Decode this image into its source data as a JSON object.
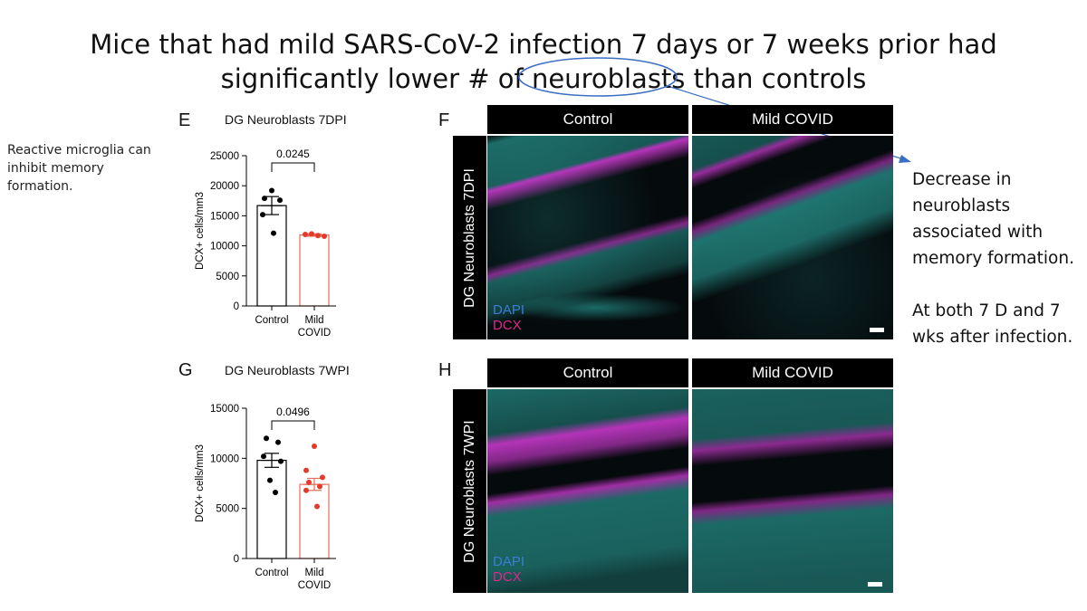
{
  "slide": {
    "title_line1": "Mice that had mild SARS-CoV-2 infection 7 days or 7 weeks prior had",
    "title_line2": "significantly lower # of neuroblasts than controls",
    "left_note": "Reactive microglia can inhibit memory formation.",
    "right_note_p1": "Decrease in neuroblasts associated with memory formation.",
    "right_note_p2": "At both 7 D and 7 wks after infection."
  },
  "panels": {
    "E": "E",
    "F": "F",
    "G": "G",
    "H": "H"
  },
  "micrographs": {
    "col_control": "Control",
    "col_covid": "Mild COVID",
    "row_7dpi": "DG Neuroblasts 7DPI",
    "row_7wpi": "DG Neuroblasts 7WPI",
    "stain_dapi": "DAPI",
    "stain_dcx": "DCX"
  },
  "colors": {
    "control": "#000000",
    "covid_bar": "#e0705a",
    "covid_dot": "#e53a2b",
    "annotation": "#3b6fc4",
    "dapi": "#3a7fd6",
    "dcx": "#e0268c",
    "cyan": "#2fb7ae",
    "magenta": "#d23bd6"
  },
  "chart_data": [
    {
      "type": "bar",
      "title": "DG Neuroblasts 7DPI",
      "ylabel": "DCX+ cells/mm3",
      "xlabel": "",
      "ylim": [
        0,
        25000
      ],
      "yticks": [
        0,
        5000,
        10000,
        15000,
        20000,
        25000
      ],
      "categories": [
        "Control",
        "Mild COVID"
      ],
      "category_lines": [
        [
          "Control"
        ],
        [
          "Mild",
          "COVID"
        ]
      ],
      "values": [
        16700,
        11800
      ],
      "sem": [
        1500,
        200
      ],
      "points": [
        [
          19200,
          17900,
          17600,
          15200,
          12100
        ],
        [
          11900,
          12000,
          11700,
          11600
        ]
      ],
      "p_value": "0.0245"
    },
    {
      "type": "bar",
      "title": "DG Neuroblasts 7WPI",
      "ylabel": "DCX+ cells/mm3",
      "xlabel": "",
      "ylim": [
        0,
        15000
      ],
      "yticks": [
        0,
        5000,
        10000,
        15000
      ],
      "categories": [
        "Control",
        "Mild COVID"
      ],
      "category_lines": [
        [
          "Control"
        ],
        [
          "Mild",
          "COVID"
        ]
      ],
      "values": [
        9800,
        7400
      ],
      "sem": [
        700,
        600
      ],
      "points": [
        [
          12000,
          11600,
          10200,
          9700,
          7800,
          6600
        ],
        [
          11200,
          8800,
          8100,
          7600,
          7200,
          6800,
          5200
        ]
      ],
      "p_value": "0.0496"
    }
  ]
}
